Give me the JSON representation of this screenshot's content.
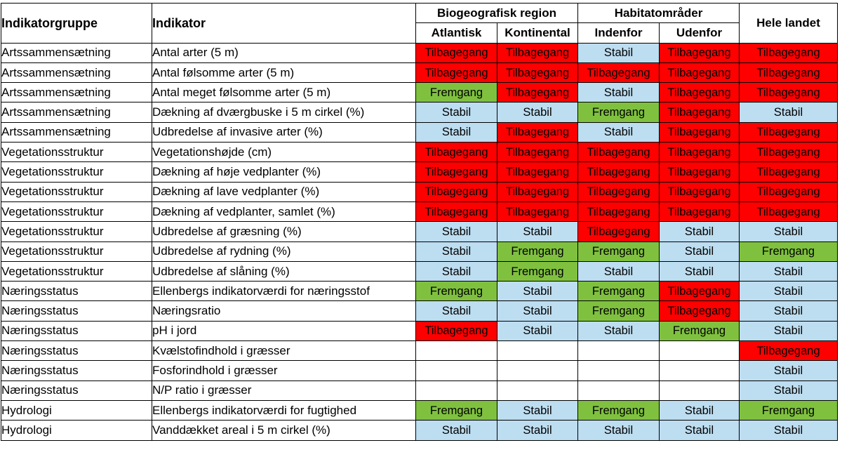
{
  "headers": {
    "group": "Indikatorgruppe",
    "indicator": "Indikator",
    "biogeo": "Biogeografisk region",
    "atlantisk": "Atlantisk",
    "kontinental": "Kontinental",
    "habitat": "Habitatområder",
    "indenfor": "Indenfor",
    "udenfor": "Udenfor",
    "hele": "Hele landet"
  },
  "status_colors": {
    "Tilbagegang": "#ff0000",
    "Stabil": "#bdddf0",
    "Fremgang": "#7fc13f"
  },
  "rows": [
    {
      "group": "Artssammensætning",
      "indicator": "Antal arter (5 m)",
      "values": [
        "Tilbagegang",
        "Tilbagegang",
        "Stabil",
        "Tilbagegang",
        "Tilbagegang"
      ]
    },
    {
      "group": "Artssammensætning",
      "indicator": "Antal følsomme arter (5 m)",
      "values": [
        "Tilbagegang",
        "Tilbagegang",
        "Tilbagegang",
        "Tilbagegang",
        "Tilbagegang"
      ]
    },
    {
      "group": "Artssammensætning",
      "indicator": "Antal meget følsomme arter (5 m)",
      "values": [
        "Fremgang",
        "Tilbagegang",
        "Stabil",
        "Tilbagegang",
        "Tilbagegang"
      ]
    },
    {
      "group": "Artssammensætning",
      "indicator": "Dækning af dværgbuske i 5 m cirkel (%)",
      "values": [
        "Stabil",
        "Stabil",
        "Fremgang",
        "Tilbagegang",
        "Stabil"
      ]
    },
    {
      "group": "Artssammensætning",
      "indicator": "Udbredelse af invasive arter (%)",
      "values": [
        "Stabil",
        "Tilbagegang",
        "Stabil",
        "Tilbagegang",
        "Tilbagegang"
      ]
    },
    {
      "group": "Vegetationsstruktur",
      "indicator": "Vegetationshøjde (cm)",
      "values": [
        "Tilbagegang",
        "Tilbagegang",
        "Tilbagegang",
        "Tilbagegang",
        "Tilbagegang"
      ]
    },
    {
      "group": "Vegetationsstruktur",
      "indicator": "Dækning af høje vedplanter (%)",
      "values": [
        "Tilbagegang",
        "Tilbagegang",
        "Tilbagegang",
        "Tilbagegang",
        "Tilbagegang"
      ]
    },
    {
      "group": "Vegetationsstruktur",
      "indicator": "Dækning af lave vedplanter (%)",
      "values": [
        "Tilbagegang",
        "Tilbagegang",
        "Tilbagegang",
        "Tilbagegang",
        "Tilbagegang"
      ]
    },
    {
      "group": "Vegetationsstruktur",
      "indicator": "Dækning af vedplanter, samlet (%)",
      "values": [
        "Tilbagegang",
        "Tilbagegang",
        "Tilbagegang",
        "Tilbagegang",
        "Tilbagegang"
      ]
    },
    {
      "group": "Vegetationsstruktur",
      "indicator": "Udbredelse af græsning (%)",
      "values": [
        "Stabil",
        "Stabil",
        "Tilbagegang",
        "Stabil",
        "Stabil"
      ]
    },
    {
      "group": "Vegetationsstruktur",
      "indicator": "Udbredelse af rydning (%)",
      "values": [
        "Stabil",
        "Fremgang",
        "Fremgang",
        "Stabil",
        "Fremgang"
      ]
    },
    {
      "group": "Vegetationsstruktur",
      "indicator": "Udbredelse af slåning (%)",
      "values": [
        "Stabil",
        "Fremgang",
        "Stabil",
        "Stabil",
        "Stabil"
      ]
    },
    {
      "group": "Næringsstatus",
      "indicator": "Ellenbergs indikatorværdi for næringsstof",
      "values": [
        "Fremgang",
        "Stabil",
        "Fremgang",
        "Tilbagegang",
        "Stabil"
      ]
    },
    {
      "group": "Næringsstatus",
      "indicator": "Næringsratio",
      "values": [
        "Stabil",
        "Stabil",
        "Fremgang",
        "Tilbagegang",
        "Stabil"
      ]
    },
    {
      "group": "Næringsstatus",
      "indicator": "pH i jord",
      "values": [
        "Tilbagegang",
        "Stabil",
        "Stabil",
        "Fremgang",
        "Stabil"
      ]
    },
    {
      "group": "Næringsstatus",
      "indicator": "Kvælstofindhold i græsser",
      "values": [
        "",
        "",
        "",
        "",
        "Tilbagegang"
      ]
    },
    {
      "group": "Næringsstatus",
      "indicator": "Fosforindhold i græsser",
      "values": [
        "",
        "",
        "",
        "",
        "Stabil"
      ]
    },
    {
      "group": "Næringsstatus",
      "indicator": "N/P ratio i græsser",
      "values": [
        "",
        "",
        "",
        "",
        "Stabil"
      ]
    },
    {
      "group": "Hydrologi",
      "indicator": "Ellenbergs indikatorværdi for fugtighed",
      "values": [
        "Fremgang",
        "Stabil",
        "Fremgang",
        "Stabil",
        "Fremgang"
      ]
    },
    {
      "group": "Hydrologi",
      "indicator": "Vanddækket areal i 5 m cirkel (%)",
      "values": [
        "Stabil",
        "Stabil",
        "Stabil",
        "Stabil",
        "Stabil"
      ]
    }
  ]
}
